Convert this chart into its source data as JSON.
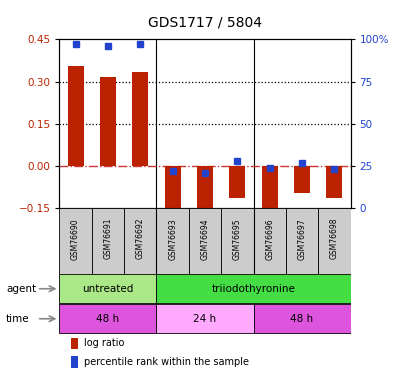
{
  "title": "GDS1717 / 5804",
  "samples": [
    "GSM76690",
    "GSM76691",
    "GSM76692",
    "GSM76693",
    "GSM76694",
    "GSM76695",
    "GSM76696",
    "GSM76697",
    "GSM76698"
  ],
  "log_ratio": [
    0.355,
    0.315,
    0.335,
    -0.175,
    -0.155,
    -0.115,
    -0.16,
    -0.095,
    -0.115
  ],
  "percentile_rank": [
    97,
    96,
    97,
    22,
    21,
    28,
    24,
    27,
    23
  ],
  "ylim_left": [
    -0.15,
    0.45
  ],
  "ylim_right": [
    0,
    100
  ],
  "yticks_left": [
    -0.15,
    0,
    0.15,
    0.3,
    0.45
  ],
  "yticks_right": [
    0,
    25,
    50,
    75,
    100
  ],
  "hlines": [
    0.15,
    0.3
  ],
  "bar_color": "#bb2200",
  "dot_color": "#2244cc",
  "zero_line_color": "#cc3333",
  "separator_cols": [
    2.5,
    5.5
  ],
  "agent_groups": [
    {
      "label": "untreated",
      "start": 0,
      "end": 3,
      "color": "#aae888"
    },
    {
      "label": "triiodothyronine",
      "start": 3,
      "end": 9,
      "color": "#44dd44"
    }
  ],
  "time_groups": [
    {
      "label": "48 h",
      "start": 0,
      "end": 3,
      "color": "#dd55dd"
    },
    {
      "label": "24 h",
      "start": 3,
      "end": 6,
      "color": "#ffaaff"
    },
    {
      "label": "48 h",
      "start": 6,
      "end": 9,
      "color": "#dd55dd"
    }
  ],
  "legend_red": "log ratio",
  "legend_blue": "percentile rank within the sample",
  "sample_bg": "#cccccc"
}
